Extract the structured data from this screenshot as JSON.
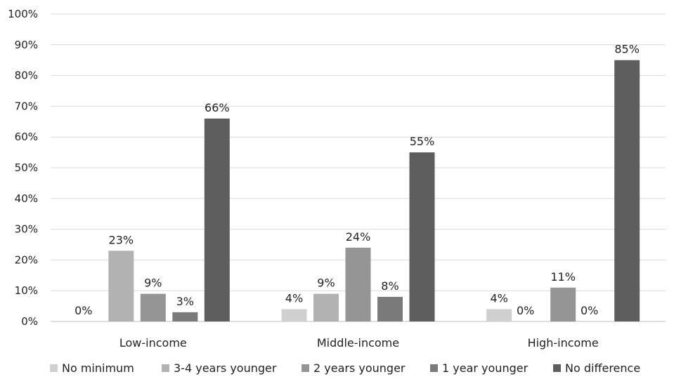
{
  "chart_data": {
    "type": "bar",
    "title": "",
    "xlabel": "",
    "ylabel": "",
    "ylim": [
      0,
      100
    ],
    "y_ticks": [
      "0%",
      "10%",
      "20%",
      "30%",
      "40%",
      "50%",
      "60%",
      "70%",
      "80%",
      "90%",
      "100%"
    ],
    "y_tick_values": [
      0,
      10,
      20,
      30,
      40,
      50,
      60,
      70,
      80,
      90,
      100
    ],
    "grid": true,
    "legend_position": "bottom",
    "categories": [
      "Low-income",
      "Middle-income",
      "High-income"
    ],
    "series": [
      {
        "name": "No minimum",
        "color": "#d0d0d0",
        "values": [
          0,
          4,
          4
        ],
        "labels": [
          "0%",
          "4%",
          "4%"
        ]
      },
      {
        "name": "3-4 years younger",
        "color": "#b2b2b2",
        "values": [
          23,
          9,
          0
        ],
        "labels": [
          "23%",
          "9%",
          "0%"
        ]
      },
      {
        "name": "2 years younger",
        "color": "#959595",
        "values": [
          9,
          24,
          11
        ],
        "labels": [
          "9%",
          "24%",
          "11%"
        ]
      },
      {
        "name": "1 year younger",
        "color": "#7a7a7a",
        "values": [
          3,
          8,
          0
        ],
        "labels": [
          "3%",
          "8%",
          "0%"
        ]
      },
      {
        "name": "No difference",
        "color": "#5e5e5e",
        "values": [
          66,
          55,
          85
        ],
        "labels": [
          "66%",
          "55%",
          "85%"
        ]
      }
    ]
  }
}
